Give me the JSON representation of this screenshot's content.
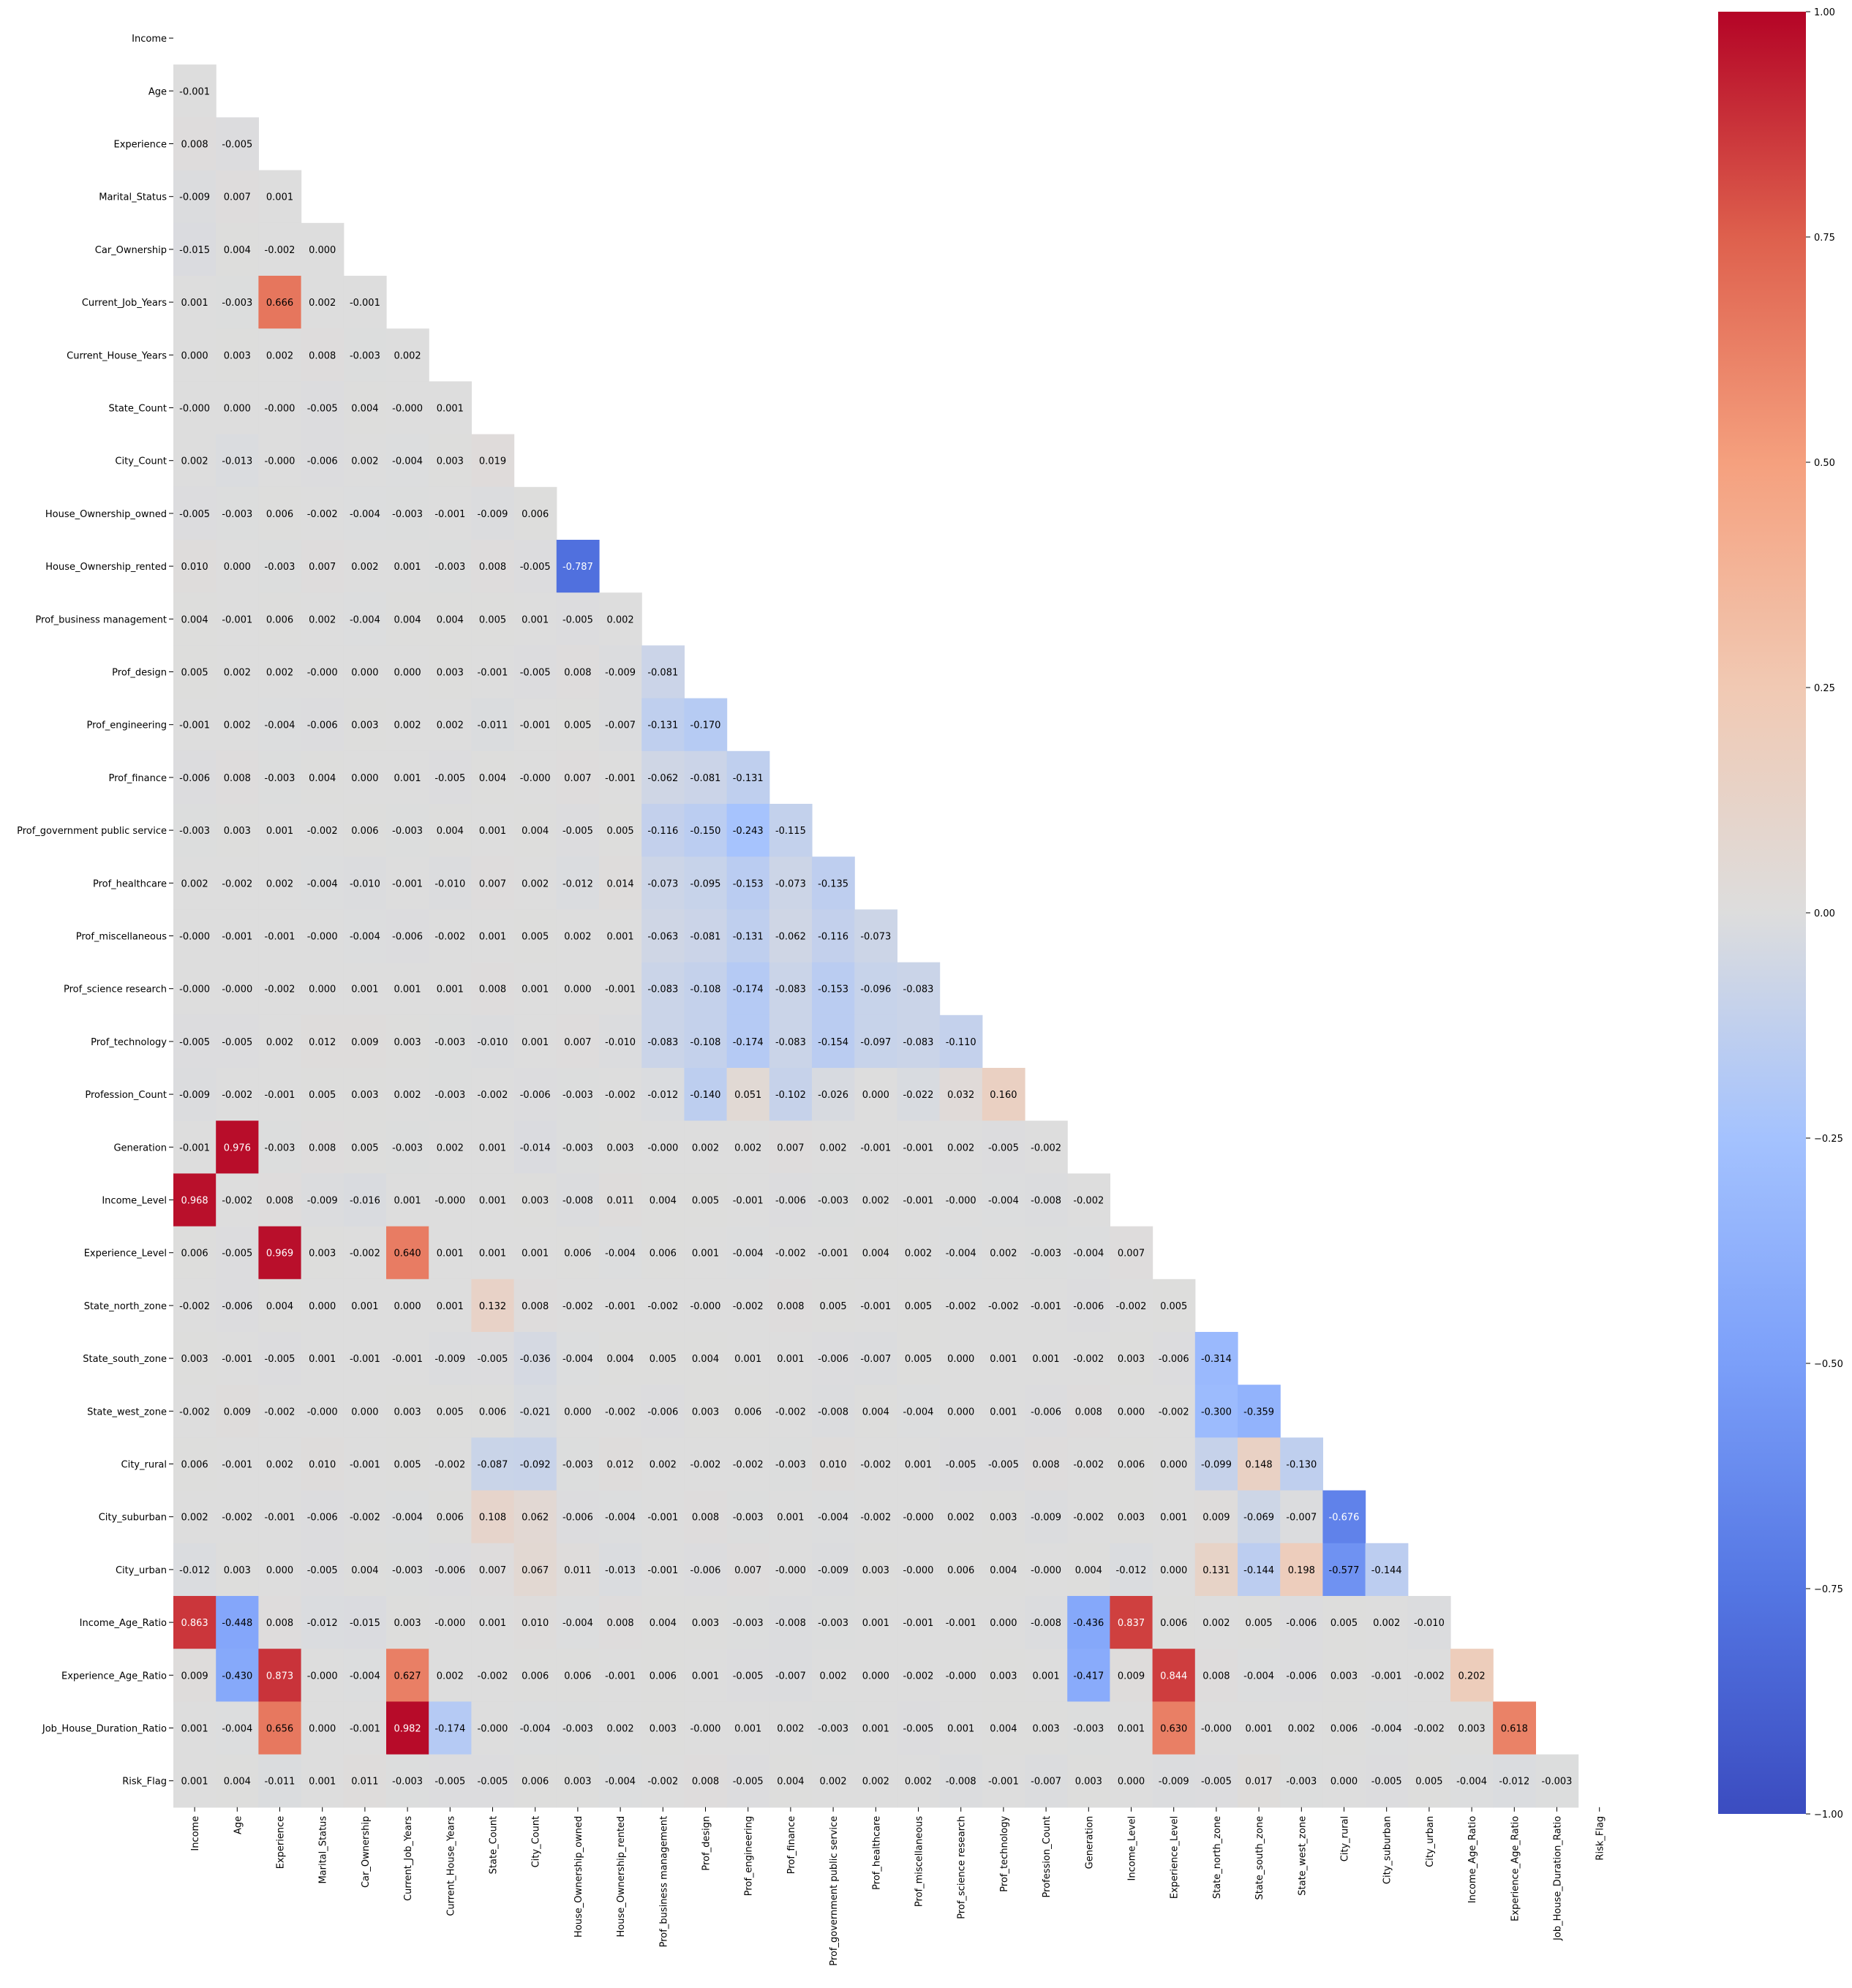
{
  "chart_data": {
    "type": "heatmap",
    "title": "",
    "xlabel": "",
    "ylabel": "",
    "mask": "upper triangle including diagonal",
    "colormap": "coolwarm",
    "vmin": -1,
    "vmax": 1,
    "annotation_format": "3 decimals",
    "labels": [
      "Income",
      "Age",
      "Experience",
      "Marital_Status",
      "Car_Ownership",
      "Current_Job_Years",
      "Current_House_Years",
      "State_Count",
      "City_Count",
      "House_Ownership_owned",
      "House_Ownership_rented",
      "Prof_business management",
      "Prof_design",
      "Prof_engineering",
      "Prof_finance",
      "Prof_government public service",
      "Prof_healthcare",
      "Prof_miscellaneous",
      "Prof_science research",
      "Prof_technology",
      "Profession_Count",
      "Generation",
      "Income_Level",
      "Experience_Level",
      "State_north_zone",
      "State_south_zone",
      "State_west_zone",
      "City_rural",
      "City_suburban",
      "City_urban",
      "Income_Age_Ratio",
      "Experience_Age_Ratio",
      "Job_House_Duration_Ratio",
      "Risk_Flag"
    ],
    "lower_triangle_rows": [
      [],
      [
        "-0.001"
      ],
      [
        "0.008",
        "-0.005"
      ],
      [
        "-0.009",
        "0.007",
        "0.001"
      ],
      [
        "-0.015",
        "0.004",
        "-0.002",
        "0.000"
      ],
      [
        "0.001",
        "-0.003",
        "0.666",
        "0.002",
        "-0.001"
      ],
      [
        "0.000",
        "0.003",
        "0.002",
        "0.008",
        "-0.003",
        "0.002"
      ],
      [
        "-0.000",
        "0.000",
        "-0.000",
        "-0.005",
        "0.004",
        "-0.000",
        "0.001"
      ],
      [
        "0.002",
        "-0.013",
        "-0.000",
        "-0.006",
        "0.002",
        "-0.004",
        "0.003",
        "0.019"
      ],
      [
        "-0.005",
        "-0.003",
        "0.006",
        "-0.002",
        "-0.004",
        "-0.003",
        "-0.001",
        "-0.009",
        "0.006"
      ],
      [
        "0.010",
        "0.000",
        "-0.003",
        "0.007",
        "0.002",
        "0.001",
        "-0.003",
        "0.008",
        "-0.005",
        "-0.787"
      ],
      [
        "0.004",
        "-0.001",
        "0.006",
        "0.002",
        "-0.004",
        "0.004",
        "0.004",
        "0.005",
        "0.001",
        "-0.005",
        "0.002"
      ],
      [
        "0.005",
        "0.002",
        "0.002",
        "-0.000",
        "0.000",
        "0.000",
        "0.003",
        "-0.001",
        "-0.005",
        "0.008",
        "-0.009",
        "-0.081"
      ],
      [
        "-0.001",
        "0.002",
        "-0.004",
        "-0.006",
        "0.003",
        "0.002",
        "0.002",
        "-0.011",
        "-0.001",
        "0.005",
        "-0.007",
        "-0.131",
        "-0.170"
      ],
      [
        "-0.006",
        "0.008",
        "-0.003",
        "0.004",
        "0.000",
        "0.001",
        "-0.005",
        "0.004",
        "-0.000",
        "0.007",
        "-0.001",
        "-0.062",
        "-0.081",
        "-0.131"
      ],
      [
        "-0.003",
        "0.003",
        "0.001",
        "-0.002",
        "0.006",
        "-0.003",
        "0.004",
        "0.001",
        "0.004",
        "-0.005",
        "0.005",
        "-0.116",
        "-0.150",
        "-0.243",
        "-0.115"
      ],
      [
        "0.002",
        "-0.002",
        "0.002",
        "-0.004",
        "-0.010",
        "-0.001",
        "-0.010",
        "0.007",
        "0.002",
        "-0.012",
        "0.014",
        "-0.073",
        "-0.095",
        "-0.153",
        "-0.073",
        "-0.135"
      ],
      [
        "-0.000",
        "-0.001",
        "-0.001",
        "-0.000",
        "-0.004",
        "-0.006",
        "-0.002",
        "0.001",
        "0.005",
        "0.002",
        "0.001",
        "-0.063",
        "-0.081",
        "-0.131",
        "-0.062",
        "-0.116",
        "-0.073"
      ],
      [
        "-0.000",
        "-0.000",
        "-0.002",
        "0.000",
        "0.001",
        "0.001",
        "0.001",
        "0.008",
        "0.001",
        "0.000",
        "-0.001",
        "-0.083",
        "-0.108",
        "-0.174",
        "-0.083",
        "-0.153",
        "-0.096",
        "-0.083"
      ],
      [
        "-0.005",
        "-0.005",
        "0.002",
        "0.012",
        "0.009",
        "0.003",
        "-0.003",
        "-0.010",
        "0.001",
        "0.007",
        "-0.010",
        "-0.083",
        "-0.108",
        "-0.174",
        "-0.083",
        "-0.154",
        "-0.097",
        "-0.083",
        "-0.110"
      ],
      [
        "-0.009",
        "-0.002",
        "-0.001",
        "0.005",
        "0.003",
        "0.002",
        "-0.003",
        "-0.002",
        "-0.006",
        "-0.003",
        "-0.002",
        "-0.012",
        "-0.140",
        "0.051",
        "-0.102",
        "-0.026",
        "0.000",
        "-0.022",
        "0.032",
        "0.160"
      ],
      [
        "-0.001",
        "0.976",
        "-0.003",
        "0.008",
        "0.005",
        "-0.003",
        "0.002",
        "0.001",
        "-0.014",
        "-0.003",
        "0.003",
        "-0.000",
        "0.002",
        "0.002",
        "0.007",
        "0.002",
        "-0.001",
        "-0.001",
        "0.002",
        "-0.005",
        "-0.002"
      ],
      [
        "0.968",
        "-0.002",
        "0.008",
        "-0.009",
        "-0.016",
        "0.001",
        "-0.000",
        "0.001",
        "0.003",
        "-0.008",
        "0.011",
        "0.004",
        "0.005",
        "-0.001",
        "-0.006",
        "-0.003",
        "0.002",
        "-0.001",
        "-0.000",
        "-0.004",
        "-0.008",
        "-0.002"
      ],
      [
        "0.006",
        "-0.005",
        "0.969",
        "0.003",
        "-0.002",
        "0.640",
        "0.001",
        "0.001",
        "0.001",
        "0.006",
        "-0.004",
        "0.006",
        "0.001",
        "-0.004",
        "-0.002",
        "-0.001",
        "0.004",
        "0.002",
        "-0.004",
        "0.002",
        "-0.003",
        "-0.004",
        "0.007"
      ],
      [
        "-0.002",
        "-0.006",
        "0.004",
        "0.000",
        "0.001",
        "0.000",
        "0.001",
        "0.132",
        "0.008",
        "-0.002",
        "-0.001",
        "-0.002",
        "-0.000",
        "-0.002",
        "0.008",
        "0.005",
        "-0.001",
        "0.005",
        "-0.002",
        "-0.002",
        "-0.001",
        "-0.006",
        "-0.002",
        "0.005"
      ],
      [
        "0.003",
        "-0.001",
        "-0.005",
        "0.001",
        "-0.001",
        "-0.001",
        "-0.009",
        "-0.005",
        "-0.036",
        "-0.004",
        "0.004",
        "0.005",
        "0.004",
        "0.001",
        "0.001",
        "-0.006",
        "-0.007",
        "0.005",
        "0.000",
        "0.001",
        "0.001",
        "-0.002",
        "0.003",
        "-0.006",
        "-0.314"
      ],
      [
        "-0.002",
        "0.009",
        "-0.002",
        "-0.000",
        "0.000",
        "0.003",
        "0.005",
        "0.006",
        "-0.021",
        "0.000",
        "-0.002",
        "-0.006",
        "0.003",
        "0.006",
        "-0.002",
        "-0.008",
        "0.004",
        "-0.004",
        "0.000",
        "0.001",
        "-0.006",
        "0.008",
        "0.000",
        "-0.002",
        "-0.300",
        "-0.359"
      ],
      [
        "0.006",
        "-0.001",
        "0.002",
        "0.010",
        "-0.001",
        "0.005",
        "-0.002",
        "-0.087",
        "-0.092",
        "-0.003",
        "0.012",
        "0.002",
        "-0.002",
        "-0.002",
        "-0.003",
        "0.010",
        "-0.002",
        "0.001",
        "-0.005",
        "-0.005",
        "0.008",
        "-0.002",
        "0.006",
        "0.000",
        "-0.099",
        "0.148",
        "-0.130"
      ],
      [
        "0.002",
        "-0.002",
        "-0.001",
        "-0.006",
        "-0.002",
        "-0.004",
        "0.006",
        "0.108",
        "0.062",
        "-0.006",
        "-0.004",
        "-0.001",
        "0.008",
        "-0.003",
        "0.001",
        "-0.004",
        "-0.002",
        "-0.000",
        "0.002",
        "0.003",
        "-0.009",
        "-0.002",
        "0.003",
        "0.001",
        "0.009",
        "-0.069",
        "-0.007",
        "-0.676"
      ],
      [
        "-0.012",
        "0.003",
        "0.000",
        "-0.005",
        "0.004",
        "-0.003",
        "-0.006",
        "0.007",
        "0.067",
        "0.011",
        "-0.013",
        "-0.001",
        "-0.006",
        "0.007",
        "-0.000",
        "-0.009",
        "0.003",
        "-0.000",
        "0.006",
        "0.004",
        "-0.000",
        "0.004",
        "-0.012",
        "0.000",
        "0.131",
        "-0.144",
        "0.198",
        "-0.577",
        "-0.144"
      ],
      [
        "0.863",
        "-0.448",
        "0.008",
        "-0.012",
        "-0.015",
        "0.003",
        "-0.000",
        "0.001",
        "0.010",
        "-0.004",
        "0.008",
        "0.004",
        "0.003",
        "-0.003",
        "-0.008",
        "-0.003",
        "0.001",
        "-0.001",
        "-0.001",
        "0.000",
        "-0.008",
        "-0.436",
        "0.837",
        "0.006",
        "0.002",
        "0.005",
        "-0.006",
        "0.005",
        "0.002",
        "-0.010"
      ],
      [
        "0.009",
        "-0.430",
        "0.873",
        "-0.000",
        "-0.004",
        "0.627",
        "0.002",
        "-0.002",
        "0.006",
        "0.006",
        "-0.001",
        "0.006",
        "0.001",
        "-0.005",
        "-0.007",
        "0.002",
        "0.000",
        "-0.002",
        "-0.000",
        "0.003",
        "0.001",
        "-0.417",
        "0.009",
        "0.844",
        "0.008",
        "-0.004",
        "-0.006",
        "0.003",
        "-0.001",
        "-0.002",
        "0.202"
      ],
      [
        "0.001",
        "-0.004",
        "0.656",
        "0.000",
        "-0.001",
        "0.982",
        "-0.174",
        "-0.000",
        "-0.004",
        "-0.003",
        "0.002",
        "0.003",
        "-0.000",
        "0.001",
        "0.002",
        "-0.003",
        "0.001",
        "-0.005",
        "0.001",
        "0.004",
        "0.003",
        "-0.003",
        "0.001",
        "0.630",
        "-0.000",
        "0.001",
        "0.002",
        "0.006",
        "-0.004",
        "-0.002",
        "0.003",
        "0.618"
      ],
      [
        "0.001",
        "0.004",
        "-0.011",
        "0.001",
        "0.011",
        "-0.003",
        "-0.005",
        "-0.005",
        "0.006",
        "0.003",
        "-0.004",
        "-0.002",
        "0.008",
        "-0.005",
        "0.004",
        "0.002",
        "0.002",
        "0.002",
        "-0.008",
        "-0.001",
        "-0.007",
        "0.003",
        "0.000",
        "-0.009",
        "-0.005",
        "0.017",
        "-0.003",
        "0.000",
        "-0.005",
        "0.005",
        "-0.004",
        "-0.012",
        "-0.003"
      ]
    ],
    "colorbar": {
      "ticks": [
        "1.00",
        "0.75",
        "0.50",
        "0.25",
        "0.00",
        "−0.25",
        "−0.50",
        "−0.75",
        "−1.00"
      ]
    }
  }
}
